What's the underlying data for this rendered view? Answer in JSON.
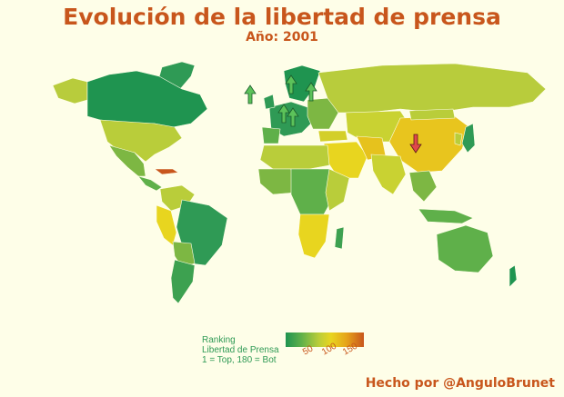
{
  "title": "Evolución de la libertad de prensa",
  "subtitle": "Año: 2001",
  "legend": {
    "line1": "Ranking",
    "line2": "Libertad de Prensa",
    "line3": "1 = Top, 180 = Bot",
    "ticks": [
      "50",
      "100",
      "150"
    ],
    "scale_min": 1,
    "scale_max": 180,
    "colors": [
      "#1f9450",
      "#5fb04a",
      "#b9cd3a",
      "#e8d51f",
      "#e6a31a",
      "#c8561c"
    ]
  },
  "credit": "Hecho por @AnguloBrunet",
  "arrows": {
    "up_color": "#5cc25a",
    "down_color": "#e0484a"
  }
}
